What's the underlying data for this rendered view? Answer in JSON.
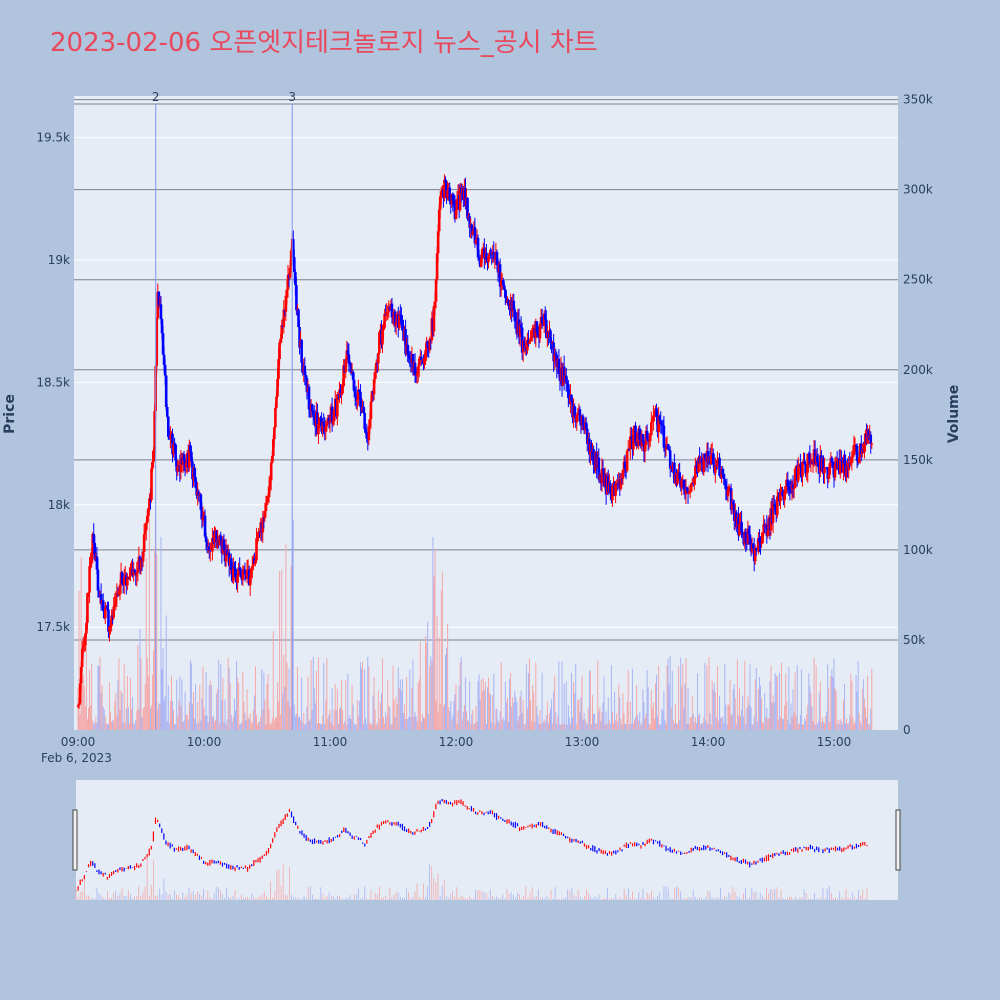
{
  "title": "2023-02-06 오픈엣지테크놀로지 뉴스_공시 차트",
  "colors": {
    "page_background": "#b0c4de",
    "plot_background": "#e5ecf6",
    "title": "#e8495d",
    "up": "#ff0000",
    "down": "#0000ff",
    "up_volume": "#f4a8a8",
    "down_volume": "#a8b4f4",
    "grid": "#ffffff",
    "volume_grid": "#7f7f8f",
    "marker_line": "#7f97f5"
  },
  "chart_data": {
    "type": "candlestick",
    "title": "2023-02-06 오픈엣지테크놀로지 뉴스_공시 차트",
    "ylabel": "Price",
    "y2label": "Volume",
    "x_tick_labels": [
      "09:00",
      "10:00",
      "11:00",
      "12:00",
      "13:00",
      "14:00",
      "15:00"
    ],
    "x_date_label": "Feb 6, 2023",
    "y_tick_labels": [
      "17.5k",
      "18k",
      "18.5k",
      "19k",
      "19.5k"
    ],
    "y2_tick_labels": [
      "0",
      "50k",
      "100k",
      "150k",
      "200k",
      "250k",
      "300k",
      "350k"
    ],
    "x_range": [
      "09:00",
      "15:30"
    ],
    "y_range": [
      17080,
      19670
    ],
    "y2_range": [
      0,
      352000
    ],
    "grid": true,
    "range_slider": true,
    "annotations": [
      {
        "label": "2",
        "time": "09:37"
      },
      {
        "label": "3",
        "time": "10:42"
      }
    ],
    "price_anchors": [
      [
        "09:00",
        17180
      ],
      [
        "09:05",
        17650
      ],
      [
        "09:07",
        17900
      ],
      [
        "09:10",
        17650
      ],
      [
        "09:15",
        17500
      ],
      [
        "09:20",
        17700
      ],
      [
        "09:25",
        17720
      ],
      [
        "09:30",
        17750
      ],
      [
        "09:34",
        18000
      ],
      [
        "09:36",
        18250
      ],
      [
        "09:38",
        18900
      ],
      [
        "09:40",
        18700
      ],
      [
        "09:43",
        18300
      ],
      [
        "09:48",
        18150
      ],
      [
        "09:53",
        18200
      ],
      [
        "09:57",
        18050
      ],
      [
        "10:03",
        17800
      ],
      [
        "10:07",
        17880
      ],
      [
        "10:10",
        17800
      ],
      [
        "10:15",
        17700
      ],
      [
        "10:22",
        17700
      ],
      [
        "10:27",
        17900
      ],
      [
        "10:32",
        18150
      ],
      [
        "10:35",
        18550
      ],
      [
        "10:38",
        18800
      ],
      [
        "10:42",
        19050
      ],
      [
        "10:45",
        18700
      ],
      [
        "10:48",
        18500
      ],
      [
        "10:52",
        18350
      ],
      [
        "10:57",
        18300
      ],
      [
        "11:03",
        18400
      ],
      [
        "11:08",
        18600
      ],
      [
        "11:13",
        18450
      ],
      [
        "11:18",
        18300
      ],
      [
        "11:23",
        18650
      ],
      [
        "11:28",
        18800
      ],
      [
        "11:33",
        18750
      ],
      [
        "11:38",
        18600
      ],
      [
        "11:42",
        18550
      ],
      [
        "11:47",
        18650
      ],
      [
        "11:50",
        18800
      ],
      [
        "11:52",
        19250
      ],
      [
        "11:55",
        19300
      ],
      [
        "12:00",
        19200
      ],
      [
        "12:03",
        19300
      ],
      [
        "12:07",
        19150
      ],
      [
        "12:12",
        19000
      ],
      [
        "12:17",
        19050
      ],
      [
        "12:22",
        18900
      ],
      [
        "12:27",
        18800
      ],
      [
        "12:32",
        18650
      ],
      [
        "12:37",
        18700
      ],
      [
        "12:42",
        18750
      ],
      [
        "12:47",
        18600
      ],
      [
        "12:52",
        18500
      ],
      [
        "12:55",
        18400
      ],
      [
        "13:00",
        18350
      ],
      [
        "13:05",
        18200
      ],
      [
        "13:10",
        18100
      ],
      [
        "13:15",
        18050
      ],
      [
        "13:20",
        18150
      ],
      [
        "13:25",
        18300
      ],
      [
        "13:30",
        18250
      ],
      [
        "13:35",
        18350
      ],
      [
        "13:40",
        18250
      ],
      [
        "13:45",
        18100
      ],
      [
        "13:50",
        18050
      ],
      [
        "13:55",
        18150
      ],
      [
        "14:00",
        18200
      ],
      [
        "14:05",
        18150
      ],
      [
        "14:10",
        18050
      ],
      [
        "14:15",
        17900
      ],
      [
        "14:20",
        17850
      ],
      [
        "14:22",
        17800
      ],
      [
        "14:25",
        17850
      ],
      [
        "14:30",
        17950
      ],
      [
        "14:35",
        18050
      ],
      [
        "14:40",
        18100
      ],
      [
        "14:45",
        18150
      ],
      [
        "14:50",
        18200
      ],
      [
        "14:55",
        18150
      ],
      [
        "15:00",
        18150
      ],
      [
        "15:05",
        18150
      ],
      [
        "15:10",
        18200
      ],
      [
        "15:15",
        18250
      ],
      [
        "15:18",
        18280
      ]
    ]
  }
}
